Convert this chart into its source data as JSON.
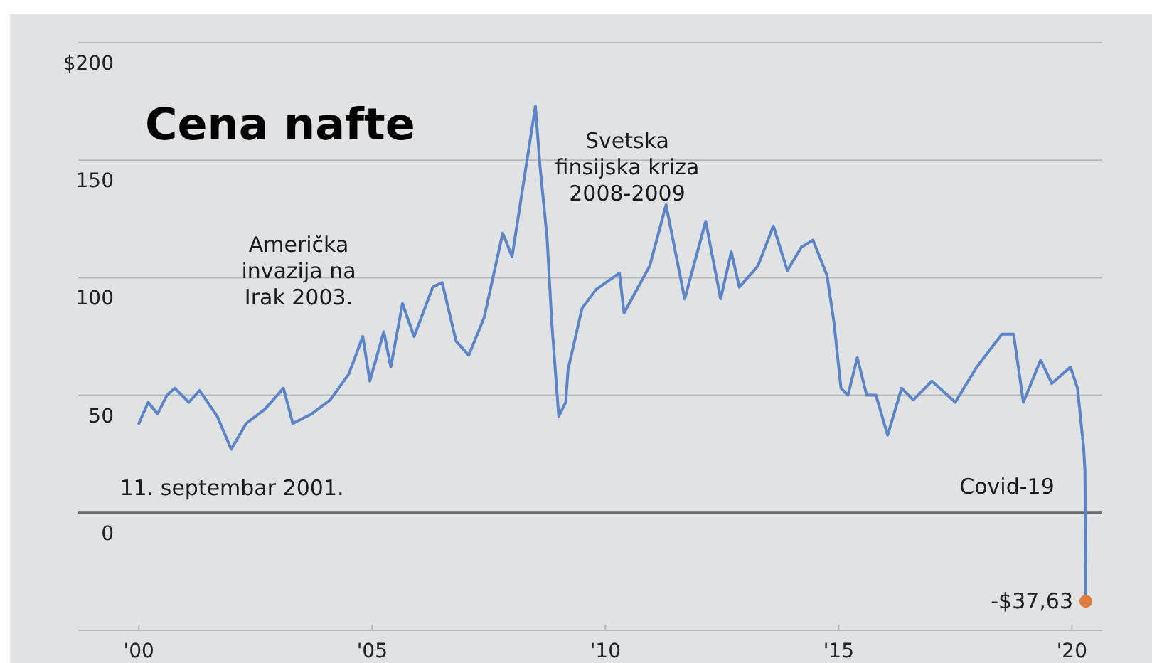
{
  "chart_data": {
    "type": "line",
    "title": "Cena nafte",
    "xlim": [
      1998.7,
      2020.65
    ],
    "xticks": [
      {
        "value": 2000,
        "label": "'00"
      },
      {
        "value": 2005,
        "label": "'05"
      },
      {
        "value": 2010,
        "label": "'10"
      },
      {
        "value": 2015,
        "label": "'15"
      },
      {
        "value": 2020,
        "label": "'20"
      }
    ],
    "ylim": [
      -50,
      200
    ],
    "yticks": [
      {
        "value": -50,
        "label": null
      },
      {
        "value": 0,
        "label": "0"
      },
      {
        "value": 50,
        "label": "50"
      },
      {
        "value": 100,
        "label": "100"
      },
      {
        "value": 150,
        "label": "150"
      },
      {
        "value": 200,
        "label": "$200"
      }
    ],
    "grid": "y",
    "marker": "none",
    "line_style": "solid",
    "ref_lines": [
      {
        "axis": "y",
        "value": 0,
        "label": null,
        "color": "#6b6b6b"
      }
    ],
    "series": [
      {
        "color": "#5b85c8",
        "x": [
          2000.0,
          2000.2,
          2000.4,
          2000.6,
          2000.77,
          2001.07,
          2001.3,
          2001.68,
          2001.98,
          2002.3,
          2002.7,
          2003.1,
          2003.3,
          2003.7,
          2004.1,
          2004.5,
          2004.8,
          2004.95,
          2005.25,
          2005.4,
          2005.65,
          2005.9,
          2006.3,
          2006.5,
          2006.8,
          2007.07,
          2007.4,
          2007.8,
          2008.0,
          2008.5,
          2008.6,
          2008.75,
          2008.85,
          2009.0,
          2009.15,
          2009.2,
          2009.5,
          2009.8,
          2010.3,
          2010.4,
          2010.95,
          2011.3,
          2011.7,
          2012.15,
          2012.47,
          2012.7,
          2012.87,
          2013.27,
          2013.6,
          2013.9,
          2014.2,
          2014.45,
          2014.75,
          2014.9,
          2015.05,
          2015.2,
          2015.4,
          2015.6,
          2015.8,
          2016.05,
          2016.35,
          2016.6,
          2017.0,
          2017.5,
          2017.96,
          2018.5,
          2018.75,
          2018.96,
          2019.33,
          2019.57,
          2019.97,
          2020.12,
          2020.25,
          2020.28,
          2020.3
        ],
        "values": [
          38,
          47,
          42,
          50,
          53,
          47,
          52,
          41,
          27,
          38,
          44,
          53,
          38,
          42,
          48,
          59,
          75,
          56,
          77,
          62,
          89,
          75,
          96,
          98,
          73,
          67,
          83,
          119,
          109,
          173,
          147,
          117,
          81,
          41,
          47,
          61,
          87,
          95,
          102,
          85,
          105,
          131,
          91,
          124,
          91,
          111,
          96,
          105,
          122,
          103,
          113,
          116,
          101,
          81,
          53,
          50,
          66,
          50,
          50,
          33,
          53,
          48,
          56,
          47,
          62,
          76,
          76,
          47,
          65,
          55,
          62,
          53,
          28,
          18,
          -37.6
        ]
      },
      {
        "type": "scatter",
        "color": "#e07b39",
        "marker": "circle",
        "x": [
          2020.3
        ],
        "values": [
          -37.63
        ],
        "value_labels": [
          "-$37,63"
        ]
      }
    ],
    "annotations": [
      "Američka\ninvazija na\nIrak 2003.",
      "11. septembar 2001.",
      "Svetska\nfinsijska kriza\n2008-2009",
      "Covid-19"
    ]
  }
}
